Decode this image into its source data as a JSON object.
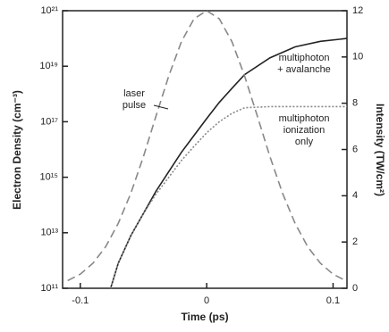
{
  "chart_data": {
    "type": "line",
    "xlabel": "Time (ps)",
    "ylabel": "Electron Density (cm⁻³)",
    "y2label": "Intensity (TW/cm²)",
    "xlim": [
      -0.114,
      0.111
    ],
    "xticks": [
      -0.1,
      0,
      0.1
    ],
    "ylim": [
      100000000000.0,
      1e+21
    ],
    "yscale": "log",
    "yticks": [
      {
        "value": 100000000000.0,
        "label": "10¹¹"
      },
      {
        "value": 10000000000000.0,
        "label": "10¹³"
      },
      {
        "value": 1000000000000000.0,
        "label": "10¹⁵"
      },
      {
        "value": 1e+17,
        "label": "10¹⁷"
      },
      {
        "value": 1e+19,
        "label": "10¹⁹"
      },
      {
        "value": 1e+21,
        "label": "10²¹"
      }
    ],
    "y2lim": [
      0,
      12
    ],
    "y2ticks": [
      0,
      2,
      4,
      6,
      8,
      10,
      12
    ],
    "series": [
      {
        "name": "multiphoton + avalanche",
        "color": "#222222",
        "dash": "none",
        "x": [
          -0.076,
          -0.07,
          -0.06,
          -0.05,
          -0.04,
          -0.03,
          -0.02,
          -0.01,
          0,
          0.01,
          0.02,
          0.03,
          0.05,
          0.07,
          0.09,
          0.111
        ],
        "values": [
          100000000000.0,
          790000000000.0,
          7900000000000.0,
          50000000000000.0,
          320000000000000.0,
          1600000000000000.0,
          7900000000000000.0,
          3.2e+16,
          1.3e+17,
          5e+17,
          1.6e+18,
          5e+18,
          2e+19,
          5e+19,
          7.9e+19,
          1e+20
        ]
      },
      {
        "name": "multiphoton ionization only",
        "color": "#888888",
        "dash": "2,2",
        "x": [
          -0.076,
          -0.07,
          -0.06,
          -0.05,
          -0.04,
          -0.03,
          -0.02,
          -0.01,
          0,
          0.01,
          0.02,
          0.03,
          0.05,
          0.07,
          0.09,
          0.111
        ],
        "values": [
          100000000000.0,
          790000000000.0,
          7900000000000.0,
          50000000000000.0,
          250000000000000.0,
          1000000000000000.0,
          4000000000000000.0,
          1.3e+16,
          4e+16,
          1e+17,
          2e+17,
          3.2e+17,
          3.5e+17,
          3.5e+17,
          3.5e+17,
          3.5e+17
        ]
      },
      {
        "name": "laser pulse",
        "color": "#888888",
        "dash": "9,5",
        "axis": "y2",
        "x": [
          -0.11,
          -0.1,
          -0.09,
          -0.08,
          -0.07,
          -0.06,
          -0.05,
          -0.04,
          -0.03,
          -0.02,
          -0.01,
          0,
          0.01,
          0.02,
          0.03,
          0.04,
          0.05,
          0.06,
          0.07,
          0.08,
          0.09,
          0.1,
          0.11
        ],
        "values": [
          0.33,
          0.61,
          1.08,
          1.79,
          2.8,
          4.11,
          5.7,
          7.46,
          9.18,
          10.66,
          11.65,
          12,
          11.65,
          10.66,
          9.18,
          7.46,
          5.7,
          4.11,
          2.8,
          1.79,
          1.08,
          0.61,
          0.33
        ]
      }
    ],
    "annotations": [
      [
        "laser",
        "pulse"
      ],
      [
        "multiphoton",
        "+ avalanche"
      ],
      [
        "multiphoton",
        "ionization",
        "only"
      ]
    ]
  }
}
